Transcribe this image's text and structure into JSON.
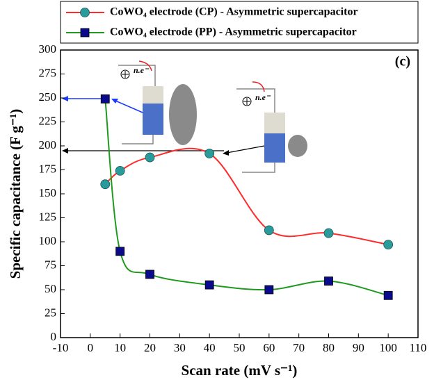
{
  "chart_data": {
    "type": "line",
    "x": [
      5,
      10,
      20,
      40,
      60,
      80,
      100
    ],
    "series": [
      {
        "name": "CoWO₄ electrode (CP) - Asymmetric supercapacitor",
        "color": "#ff2a2a",
        "marker": "circle",
        "marker_color": "#2a9a9a",
        "values": [
          160,
          174,
          188,
          192,
          112,
          109,
          97
        ]
      },
      {
        "name": "CoWO₄ electrode (PP) - Asymmetric supercapacitor",
        "color": "#1f9a1f",
        "marker": "square",
        "marker_color": "#0a0a8c",
        "values": [
          249,
          90,
          66,
          55,
          50,
          59,
          44
        ]
      }
    ],
    "xlabel": "Scan rate (mV s⁻¹)",
    "ylabel": "Specific capacitance (F g⁻¹)",
    "xlim": [
      -10,
      110
    ],
    "xticks": [
      -10,
      0,
      10,
      20,
      30,
      40,
      50,
      60,
      70,
      80,
      90,
      100,
      110
    ],
    "ylim": [
      0,
      300
    ],
    "yticks": [
      0,
      25,
      50,
      75,
      100,
      125,
      150,
      175,
      200,
      225,
      250,
      275,
      300
    ],
    "annotations": [
      "(c)",
      "n.e⁻",
      "n.e⁻"
    ],
    "grid": false
  }
}
